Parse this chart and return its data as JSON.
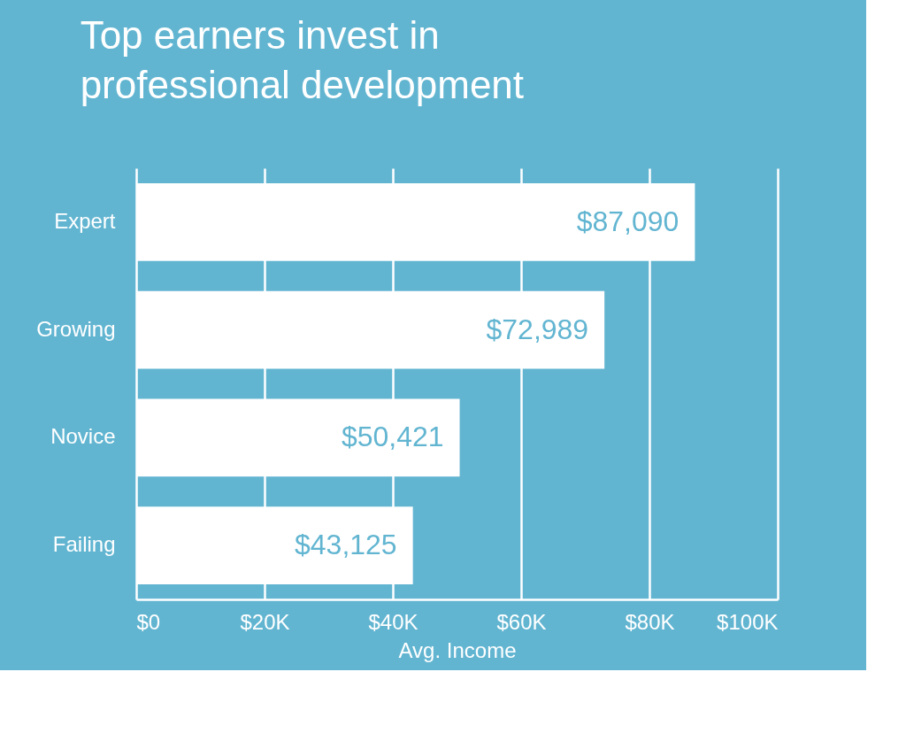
{
  "chart_data": {
    "type": "bar",
    "orientation": "horizontal",
    "title": "Top earners invest in\nprofessional development",
    "xlabel": "Avg. Income",
    "categories": [
      "Expert",
      "Growing",
      "Novice",
      "Failing"
    ],
    "values": [
      87090,
      72989,
      50421,
      43125
    ],
    "value_labels": [
      "$87,090",
      "$72,989",
      "$50,421",
      "$43,125"
    ],
    "color": "#ffffff",
    "xlim": [
      0,
      100000
    ],
    "xticks": [
      {
        "value": 0,
        "label": "$0"
      },
      {
        "value": 20000,
        "label": "$20K"
      },
      {
        "value": 40000,
        "label": "$40K"
      },
      {
        "value": 60000,
        "label": "$60K"
      },
      {
        "value": 80000,
        "label": "$80K"
      },
      {
        "value": 100000,
        "label": "$100K"
      }
    ],
    "grid": "x"
  }
}
